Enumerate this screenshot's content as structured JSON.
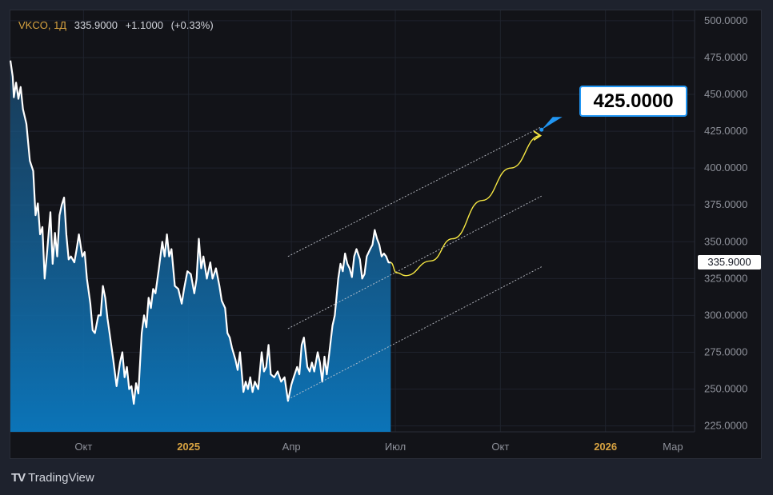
{
  "header": {
    "symbol": "VKCO, 1Д",
    "last": "335.9000",
    "change": "+1.1000",
    "change_pct": "(+0.33%)"
  },
  "price_tag": "335.9000",
  "target_label": "425.0000",
  "brand": {
    "logo": "TV",
    "name": "TradingView"
  },
  "colors": {
    "background": "#121318",
    "outer": "#1e222d",
    "line": "#ffffff",
    "area_top": "#1d5c8c",
    "area_bottom": "#0b74b8",
    "projection": "#f5e642",
    "channel": "#c9ccd4",
    "axis_text": "#8e919a",
    "axis_text_bold": "#d8a341"
  },
  "chart_data": {
    "type": "area",
    "y_axis": {
      "min": 221,
      "max": 507,
      "ticks": [
        500,
        475,
        450,
        425,
        400,
        375,
        350,
        325,
        300,
        275,
        250,
        225
      ],
      "tick_labels": [
        "500.0000",
        "475.0000",
        "450.0000",
        "425.0000",
        "400.0000",
        "375.0000",
        "350.0000",
        "325.0000",
        "300.0000",
        "275.0000",
        "250.0000",
        "225.0000"
      ],
      "position": "right"
    },
    "x_axis": {
      "start": "2024-07-29",
      "end": "2026-03-20",
      "ticks": [
        {
          "label": "Окт",
          "date": "2024-10-01",
          "bold": false
        },
        {
          "label": "2025",
          "date": "2025-01-01",
          "bold": true
        },
        {
          "label": "Апр",
          "date": "2025-04-01",
          "bold": false
        },
        {
          "label": "Июл",
          "date": "2025-07-01",
          "bold": false
        },
        {
          "label": "Окт",
          "date": "2025-10-01",
          "bold": false
        },
        {
          "label": "2026",
          "date": "2026-01-01",
          "bold": true
        },
        {
          "label": "Мар",
          "date": "2026-03-01",
          "bold": false
        }
      ]
    },
    "grid": true,
    "series": [
      {
        "values": [
          [
            "2024-07-29",
            473
          ],
          [
            "2024-07-31",
            462
          ],
          [
            "2024-08-01",
            448
          ],
          [
            "2024-08-03",
            458
          ],
          [
            "2024-08-05",
            447
          ],
          [
            "2024-08-07",
            455
          ],
          [
            "2024-08-09",
            440
          ],
          [
            "2024-08-12",
            430
          ],
          [
            "2024-08-15",
            405
          ],
          [
            "2024-08-18",
            398
          ],
          [
            "2024-08-20",
            368
          ],
          [
            "2024-08-22",
            376
          ],
          [
            "2024-08-24",
            355
          ],
          [
            "2024-08-26",
            360
          ],
          [
            "2024-08-28",
            325
          ],
          [
            "2024-08-30",
            342
          ],
          [
            "2024-09-02",
            370
          ],
          [
            "2024-09-04",
            335
          ],
          [
            "2024-09-06",
            356
          ],
          [
            "2024-09-08",
            340
          ],
          [
            "2024-09-10",
            368
          ],
          [
            "2024-09-12",
            375
          ],
          [
            "2024-09-14",
            380
          ],
          [
            "2024-09-16",
            355
          ],
          [
            "2024-09-18",
            338
          ],
          [
            "2024-09-20",
            340
          ],
          [
            "2024-09-23",
            336
          ],
          [
            "2024-09-25",
            345
          ],
          [
            "2024-09-27",
            355
          ],
          [
            "2024-09-30",
            340
          ],
          [
            "2024-10-02",
            343
          ],
          [
            "2024-10-04",
            325
          ],
          [
            "2024-10-07",
            308
          ],
          [
            "2024-10-09",
            290
          ],
          [
            "2024-10-11",
            288
          ],
          [
            "2024-10-14",
            300
          ],
          [
            "2024-10-16",
            300
          ],
          [
            "2024-10-18",
            320
          ],
          [
            "2024-10-20",
            312
          ],
          [
            "2024-10-22",
            298
          ],
          [
            "2024-10-24",
            287
          ],
          [
            "2024-10-27",
            270
          ],
          [
            "2024-10-30",
            252
          ],
          [
            "2024-11-02",
            268
          ],
          [
            "2024-11-04",
            275
          ],
          [
            "2024-11-06",
            258
          ],
          [
            "2024-11-08",
            265
          ],
          [
            "2024-11-10",
            250
          ],
          [
            "2024-11-12",
            252
          ],
          [
            "2024-11-14",
            240
          ],
          [
            "2024-11-16",
            254
          ],
          [
            "2024-11-18",
            247
          ],
          [
            "2024-11-21",
            288
          ],
          [
            "2024-11-23",
            300
          ],
          [
            "2024-11-25",
            292
          ],
          [
            "2024-11-27",
            312
          ],
          [
            "2024-11-29",
            305
          ],
          [
            "2024-12-01",
            318
          ],
          [
            "2024-12-03",
            315
          ],
          [
            "2024-12-06",
            332
          ],
          [
            "2024-12-09",
            350
          ],
          [
            "2024-12-11",
            340
          ],
          [
            "2024-12-13",
            355
          ],
          [
            "2024-12-15",
            340
          ],
          [
            "2024-12-17",
            345
          ],
          [
            "2024-12-20",
            320
          ],
          [
            "2024-12-23",
            318
          ],
          [
            "2024-12-26",
            308
          ],
          [
            "2024-12-28",
            318
          ],
          [
            "2024-12-31",
            330
          ],
          [
            "2025-01-03",
            328
          ],
          [
            "2025-01-06",
            315
          ],
          [
            "2025-01-08",
            325
          ],
          [
            "2025-01-10",
            352
          ],
          [
            "2025-01-12",
            332
          ],
          [
            "2025-01-14",
            340
          ],
          [
            "2025-01-17",
            325
          ],
          [
            "2025-01-20",
            336
          ],
          [
            "2025-01-22",
            325
          ],
          [
            "2025-01-25",
            332
          ],
          [
            "2025-01-28",
            320
          ],
          [
            "2025-01-30",
            310
          ],
          [
            "2025-02-02",
            305
          ],
          [
            "2025-02-04",
            288
          ],
          [
            "2025-02-06",
            285
          ],
          [
            "2025-02-08",
            278
          ],
          [
            "2025-02-11",
            270
          ],
          [
            "2025-02-13",
            263
          ],
          [
            "2025-02-15",
            275
          ],
          [
            "2025-02-18",
            248
          ],
          [
            "2025-02-20",
            255
          ],
          [
            "2025-02-22",
            250
          ],
          [
            "2025-02-24",
            258
          ],
          [
            "2025-02-26",
            248
          ],
          [
            "2025-02-28",
            255
          ],
          [
            "2025-03-03",
            250
          ],
          [
            "2025-03-06",
            275
          ],
          [
            "2025-03-08",
            262
          ],
          [
            "2025-03-10",
            265
          ],
          [
            "2025-03-12",
            280
          ],
          [
            "2025-03-14",
            260
          ],
          [
            "2025-03-17",
            258
          ],
          [
            "2025-03-20",
            262
          ],
          [
            "2025-03-23",
            255
          ],
          [
            "2025-03-26",
            258
          ],
          [
            "2025-03-29",
            242
          ],
          [
            "2025-04-01",
            253
          ],
          [
            "2025-04-03",
            258
          ],
          [
            "2025-04-06",
            265
          ],
          [
            "2025-04-08",
            260
          ],
          [
            "2025-04-10",
            280
          ],
          [
            "2025-04-12",
            285
          ],
          [
            "2025-04-15",
            265
          ],
          [
            "2025-04-17",
            262
          ],
          [
            "2025-04-19",
            268
          ],
          [
            "2025-04-21",
            262
          ],
          [
            "2025-04-24",
            275
          ],
          [
            "2025-04-26",
            268
          ],
          [
            "2025-04-28",
            255
          ],
          [
            "2025-04-30",
            272
          ],
          [
            "2025-05-02",
            260
          ],
          [
            "2025-05-05",
            280
          ],
          [
            "2025-05-07",
            293
          ],
          [
            "2025-05-09",
            300
          ],
          [
            "2025-05-12",
            325
          ],
          [
            "2025-05-14",
            335
          ],
          [
            "2025-05-16",
            330
          ],
          [
            "2025-05-18",
            342
          ],
          [
            "2025-05-20",
            335
          ],
          [
            "2025-05-22",
            332
          ],
          [
            "2025-05-24",
            326
          ],
          [
            "2025-05-26",
            340
          ],
          [
            "2025-05-28",
            345
          ],
          [
            "2025-05-31",
            338
          ],
          [
            "2025-06-02",
            325
          ],
          [
            "2025-06-04",
            328
          ],
          [
            "2025-06-06",
            340
          ],
          [
            "2025-06-09",
            345
          ],
          [
            "2025-06-11",
            348
          ],
          [
            "2025-06-13",
            358
          ],
          [
            "2025-06-15",
            352
          ],
          [
            "2025-06-17",
            348
          ],
          [
            "2025-06-19",
            340
          ],
          [
            "2025-06-21",
            342
          ],
          [
            "2025-06-23",
            340
          ],
          [
            "2025-06-25",
            336
          ],
          [
            "2025-06-27",
            335.9
          ]
        ]
      }
    ],
    "annotations": {
      "projection_curve": [
        [
          "2025-06-27",
          335.9
        ],
        [
          "2025-07-02",
          329
        ],
        [
          "2025-07-10",
          327
        ],
        [
          "2025-08-01",
          337
        ],
        [
          "2025-08-20",
          352
        ],
        [
          "2025-09-15",
          378
        ],
        [
          "2025-10-10",
          400
        ],
        [
          "2025-11-05",
          422
        ]
      ],
      "target": {
        "date": "2025-11-06",
        "value": 426,
        "label": "425.0000"
      },
      "channel_lines": [
        {
          "from": [
            "2025-03-29",
            340
          ],
          "to": [
            "2025-11-06",
            428
          ]
        },
        {
          "from": [
            "2025-03-29",
            291
          ],
          "to": [
            "2025-11-06",
            381
          ]
        },
        {
          "from": [
            "2025-03-29",
            243
          ],
          "to": [
            "2025-11-06",
            333
          ]
        }
      ]
    }
  }
}
